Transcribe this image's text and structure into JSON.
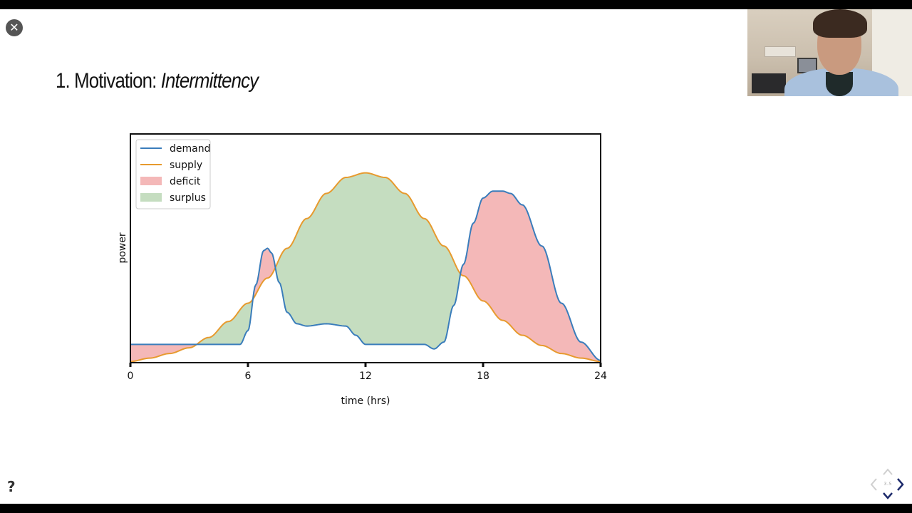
{
  "slide": {
    "title_prefix": "1. Motivation: ",
    "title_emphasis": "Intermittency",
    "page_number": "3.5"
  },
  "controls": {
    "close_icon": "close-icon",
    "help_label": "?",
    "nav_icons": [
      "chevron-left-icon",
      "chevron-right-icon",
      "chevron-up-icon",
      "chevron-down-icon"
    ]
  },
  "colors": {
    "demand": "#3a7dbb",
    "supply": "#e79a2e",
    "deficit": "#f4b8b8",
    "surplus": "#c5ddc0"
  },
  "chart_data": {
    "type": "line",
    "xlabel": "time (hrs)",
    "ylabel": "power",
    "xlim": [
      0,
      24
    ],
    "ylim": [
      0,
      10
    ],
    "xticks": [
      0,
      6,
      12,
      18,
      24
    ],
    "legend": {
      "placement": "top-left",
      "entries": [
        {
          "label": "demand",
          "kind": "line",
          "color": "#3a7dbb"
        },
        {
          "label": "supply",
          "kind": "line",
          "color": "#e79a2e"
        },
        {
          "label": "deficit",
          "kind": "patch",
          "color": "#f4b8b8"
        },
        {
          "label": "surplus",
          "kind": "patch",
          "color": "#c5ddc0"
        }
      ]
    },
    "series": [
      {
        "name": "demand",
        "x": [
          0,
          1,
          2,
          3,
          4,
          5,
          5.6,
          6,
          6.4,
          6.8,
          7,
          7.2,
          7.6,
          8,
          8.5,
          9,
          10,
          11,
          11.5,
          12,
          12.5,
          13,
          14,
          15,
          15.5,
          16,
          16.5,
          17,
          17.5,
          18,
          18.5,
          19,
          19.4,
          20,
          21,
          22,
          23,
          24
        ],
        "y": [
          0.8,
          0.8,
          0.8,
          0.8,
          0.8,
          0.8,
          0.8,
          1.4,
          3.4,
          4.9,
          5.0,
          4.8,
          3.5,
          2.2,
          1.7,
          1.6,
          1.7,
          1.6,
          1.2,
          0.8,
          0.8,
          0.8,
          0.8,
          0.8,
          0.6,
          0.9,
          2.5,
          4.3,
          6.1,
          7.2,
          7.5,
          7.5,
          7.4,
          6.9,
          5.1,
          2.6,
          0.9,
          0.1
        ]
      },
      {
        "name": "supply",
        "x": [
          0,
          1,
          2,
          3,
          4,
          5,
          6,
          7,
          8,
          9,
          10,
          11,
          12,
          13,
          14,
          15,
          16,
          17,
          18,
          19,
          20,
          21,
          22,
          23,
          24
        ],
        "y": [
          0.05,
          0.2,
          0.4,
          0.65,
          1.1,
          1.8,
          2.6,
          3.7,
          5.0,
          6.3,
          7.4,
          8.1,
          8.3,
          8.1,
          7.4,
          6.3,
          5.1,
          3.8,
          2.7,
          1.85,
          1.2,
          0.75,
          0.4,
          0.2,
          0.05
        ]
      }
    ]
  }
}
